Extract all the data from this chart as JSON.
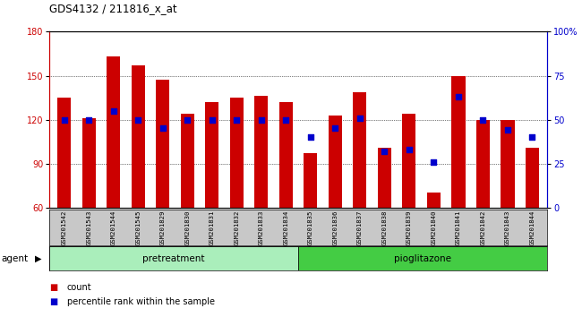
{
  "title": "GDS4132 / 211816_x_at",
  "samples": [
    "GSM201542",
    "GSM201543",
    "GSM201544",
    "GSM201545",
    "GSM201829",
    "GSM201830",
    "GSM201831",
    "GSM201832",
    "GSM201833",
    "GSM201834",
    "GSM201835",
    "GSM201836",
    "GSM201837",
    "GSM201838",
    "GSM201839",
    "GSM201840",
    "GSM201841",
    "GSM201842",
    "GSM201843",
    "GSM201844"
  ],
  "counts": [
    135,
    121,
    163,
    157,
    147,
    124,
    132,
    135,
    136,
    132,
    97,
    123,
    139,
    101,
    124,
    70,
    150,
    120,
    120,
    101
  ],
  "percentile_ranks": [
    50,
    50,
    55,
    50,
    45,
    50,
    50,
    50,
    50,
    50,
    40,
    45,
    51,
    32,
    33,
    26,
    63,
    50,
    44,
    40
  ],
  "pretreatment_label": "pretreatment",
  "pioglitazone_label": "pioglitazone",
  "n_pretreatment": 10,
  "n_pioglitazone": 10,
  "bar_color": "#CC0000",
  "dot_color": "#0000CC",
  "pretreat_color": "#AAEEBB",
  "pioglit_color": "#44CC44",
  "ylim_left": [
    60,
    180
  ],
  "ylim_right": [
    0,
    100
  ],
  "yticks_left": [
    60,
    90,
    120,
    150,
    180
  ],
  "yticks_right": [
    0,
    25,
    50,
    75,
    100
  ],
  "agent_label": "agent",
  "legend_count": "count",
  "legend_percentile": "percentile rank within the sample",
  "bar_width": 0.55,
  "background_color": "#FFFFFF",
  "tick_label_color_left": "#CC0000",
  "tick_label_color_right": "#0000CC",
  "title_color": "#000000"
}
